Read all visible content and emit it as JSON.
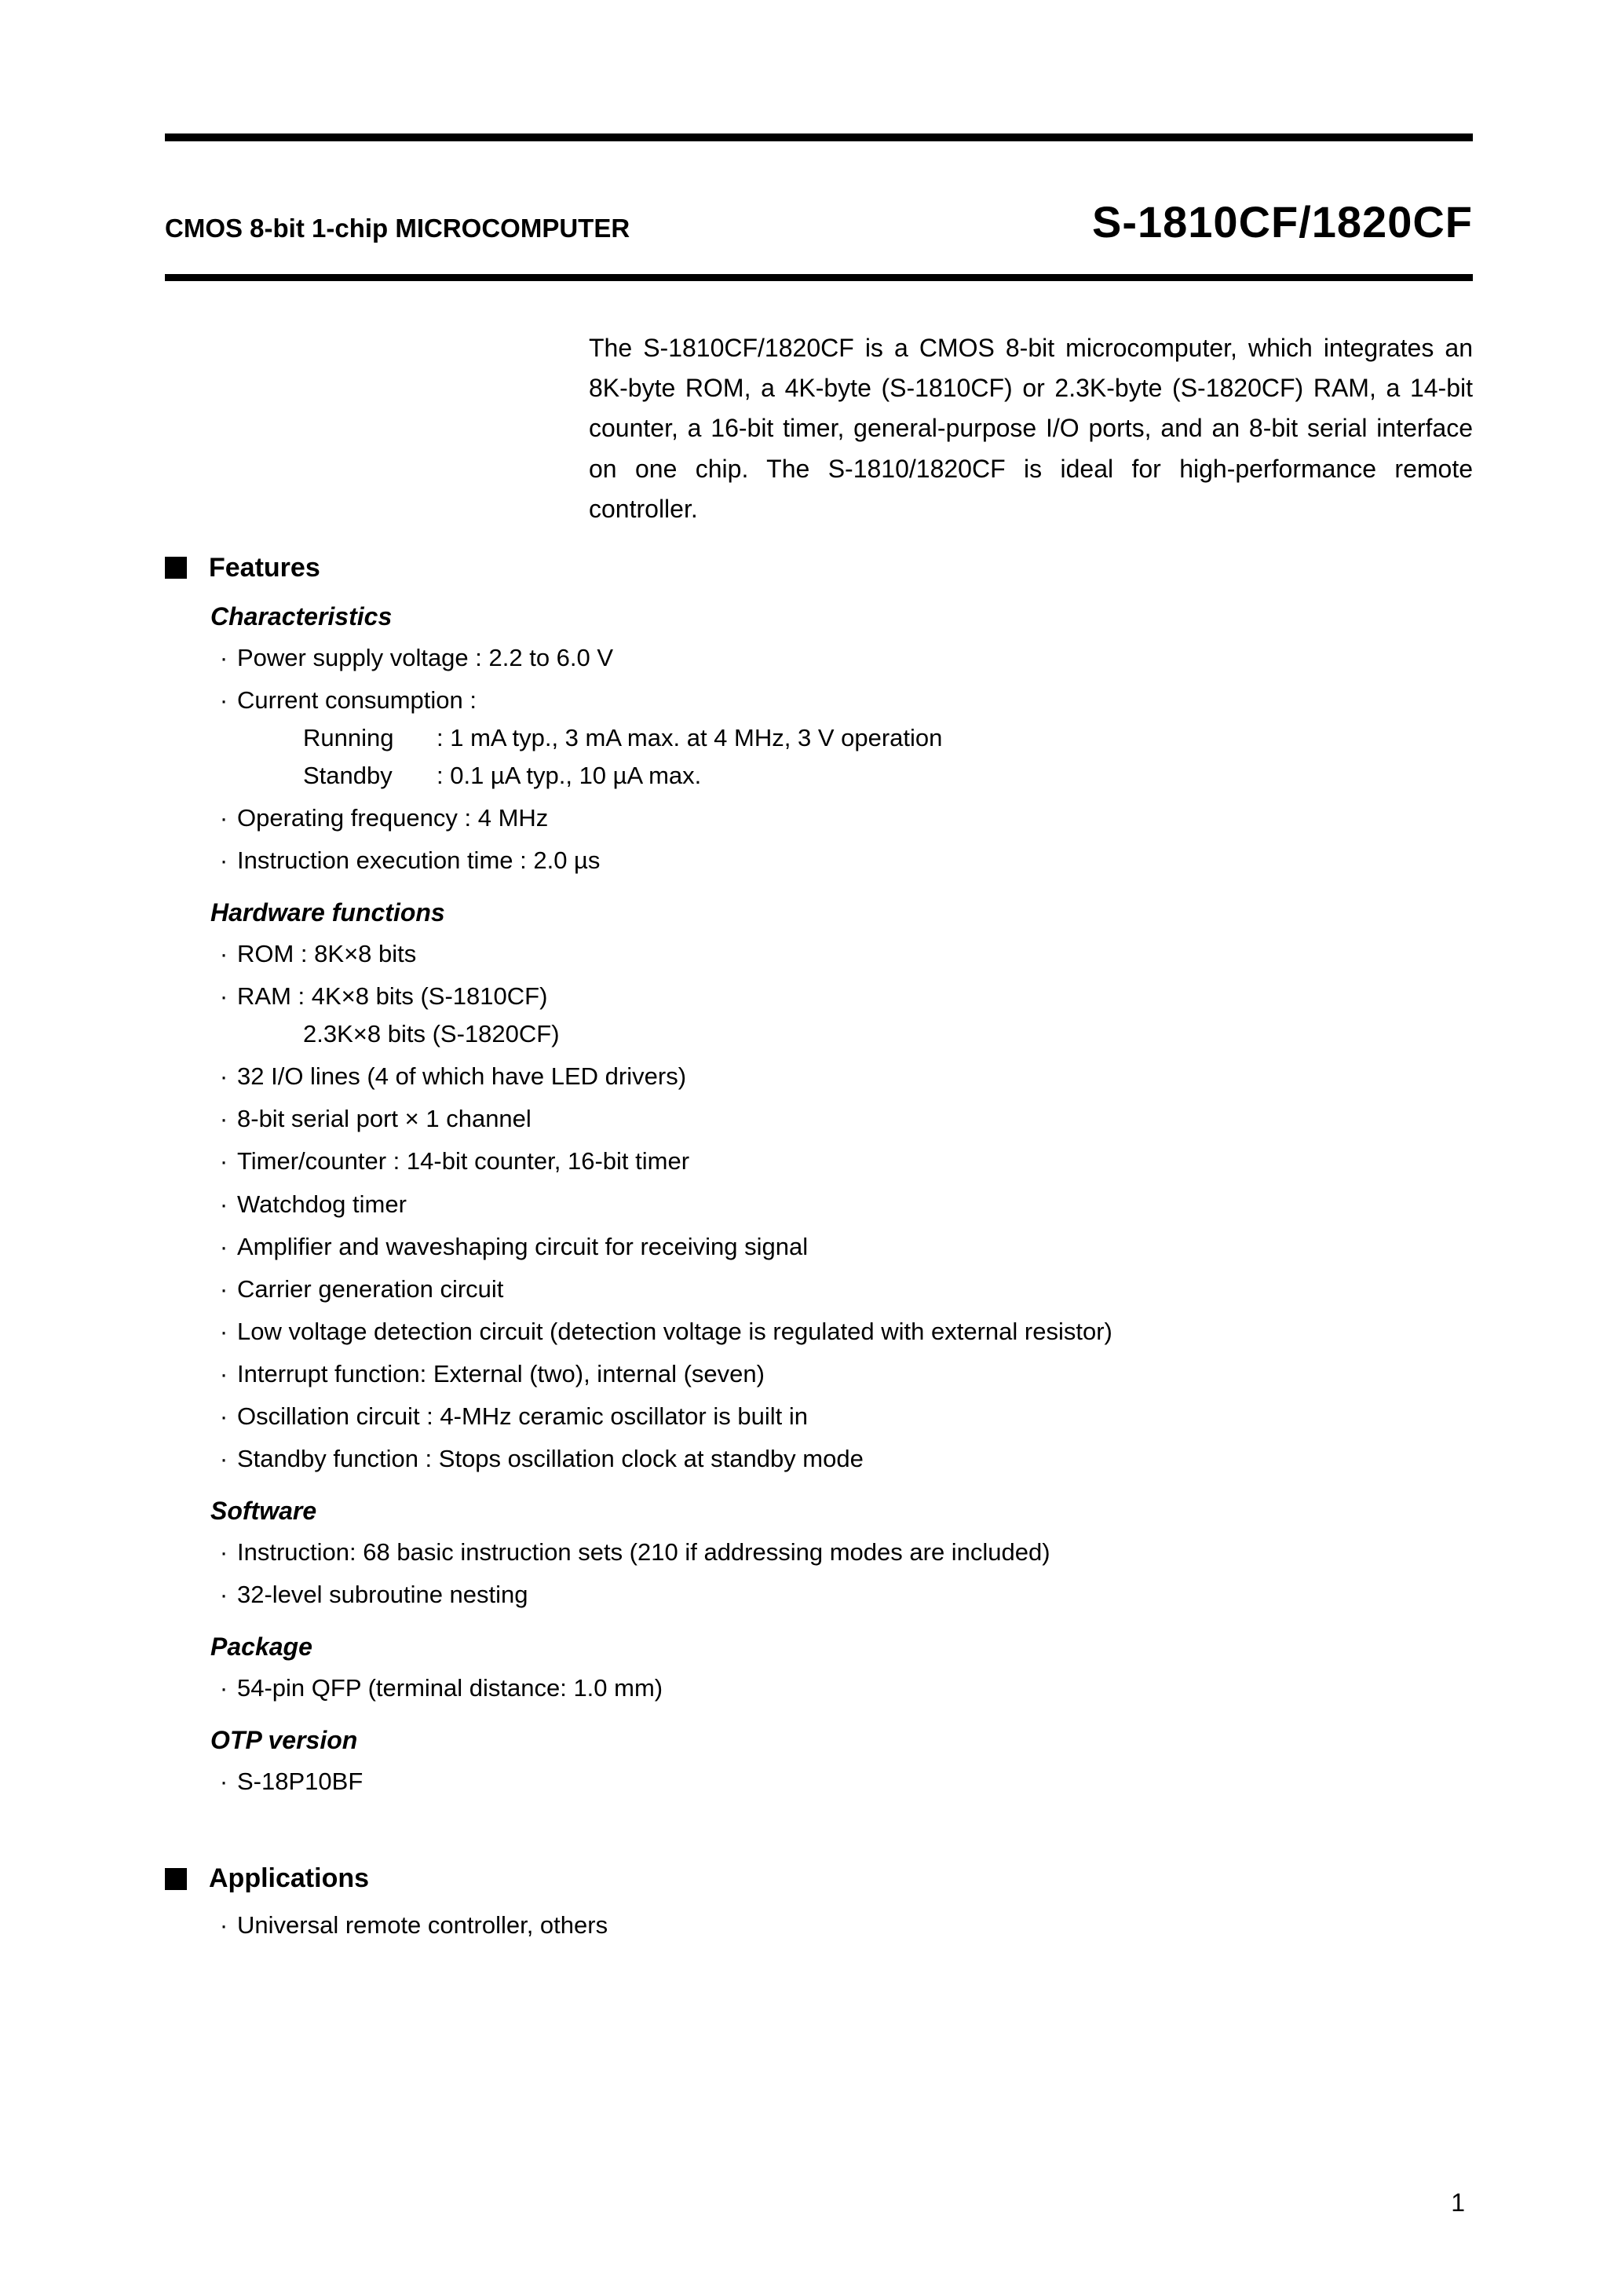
{
  "colors": {
    "text": "#000000",
    "background": "#ffffff",
    "rule": "#000000"
  },
  "typography": {
    "body_pt": 31,
    "subtitle_pt": 33,
    "partnum_pt": 56,
    "section_pt": 34,
    "subsection_pt": 32,
    "font_family": "Arial"
  },
  "header": {
    "subtitle": "CMOS 8-bit 1-chip MICROCOMPUTER",
    "part_number": "S-1810CF/1820CF"
  },
  "intro": "The S-1810CF/1820CF is a CMOS 8-bit microcomputer, which integrates an 8K-byte ROM, a 4K-byte (S-1810CF) or 2.3K-byte (S-1820CF) RAM, a 14-bit counter, a 16-bit timer, general-purpose I/O ports, and an 8-bit serial interface on one chip.  The S-1810/1820CF is ideal for high-performance remote controller.",
  "features": {
    "title": "Features",
    "characteristics": {
      "title": "Characteristics",
      "items": [
        {
          "text": "Power supply voltage : 2.2 to 6.0 V"
        },
        {
          "text": "Current consumption :",
          "cc": {
            "running_label": "Running",
            "running_value": ": 1 mA typ., 3 mA max. at 4 MHz, 3 V operation",
            "standby_label": "Standby",
            "standby_value": ": 0.1 µA  typ., 10 µA max."
          }
        },
        {
          "text": "Operating frequency : 4 MHz"
        },
        {
          "text": "Instruction execution time :  2.0 µs"
        }
      ]
    },
    "hardware": {
      "title": "Hardware functions",
      "items": [
        {
          "text": "ROM : 8K×8 bits"
        },
        {
          "text": "RAM :   4K×8 bits (S-1810CF)",
          "sub": "2.3K×8 bits (S-1820CF)"
        },
        {
          "text": "32 I/O lines (4 of which have LED drivers)"
        },
        {
          "text": "8-bit serial port × 1 channel"
        },
        {
          "text": "Timer/counter : 14-bit counter, 16-bit timer"
        },
        {
          "text": "Watchdog timer"
        },
        {
          "text": "Amplifier and waveshaping circuit for receiving signal"
        },
        {
          "text": "Carrier generation circuit"
        },
        {
          "text": "Low voltage detection circuit (detection voltage is regulated with external resistor)"
        },
        {
          "text": "Interrupt function: External (two), internal (seven)"
        },
        {
          "text": "Oscillation circuit : 4-MHz ceramic oscillator is built in"
        },
        {
          "text": "Standby function : Stops oscillation clock at standby mode"
        }
      ]
    },
    "software": {
      "title": "Software",
      "items": [
        {
          "text": "Instruction: 68 basic instruction sets (210 if addressing modes are included)"
        },
        {
          "text": "32-level subroutine nesting"
        }
      ]
    },
    "package": {
      "title": "Package",
      "items": [
        {
          "text": "54-pin QFP (terminal distance: 1.0 mm)"
        }
      ]
    },
    "otp": {
      "title": "OTP version",
      "items": [
        {
          "text": "S-18P10BF"
        }
      ]
    }
  },
  "applications": {
    "title": "Applications",
    "items": [
      {
        "text": "Universal remote controller, others"
      }
    ]
  },
  "page_number": "1"
}
